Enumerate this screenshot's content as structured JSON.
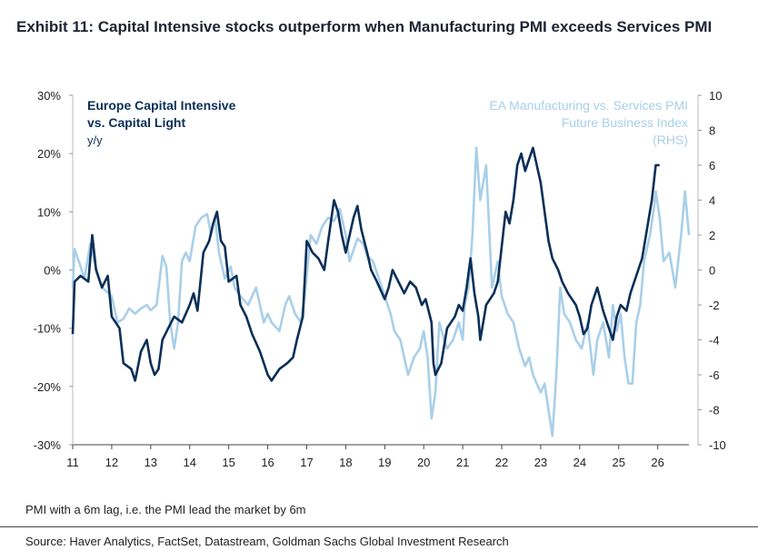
{
  "title": "Exhibit 11:  Capital Intensive stocks outperform when Manufacturing PMI exceeds Services PMI",
  "footnote": "PMI with a 6m lag, i.e. the PMI lead the market by 6m",
  "source": "Source: Haver Analytics, FactSet, Datastream, Goldman Sachs Global Investment Research",
  "chart_data": {
    "type": "line",
    "x_tick_labels": [
      "11",
      "12",
      "13",
      "14",
      "15",
      "16",
      "17",
      "18",
      "19",
      "20",
      "21",
      "22",
      "23",
      "24",
      "25",
      "26"
    ],
    "x_range": [
      2011.0,
      2026.8
    ],
    "left_axis": {
      "ticks": [
        "30%",
        "20%",
        "10%",
        "0%",
        "-10%",
        "-20%",
        "-30%"
      ],
      "range": [
        -30,
        30
      ]
    },
    "right_axis": {
      "ticks": [
        "10",
        "8",
        "6",
        "4",
        "2",
        "0",
        "-2",
        "-4",
        "-6",
        "-8",
        "-10"
      ],
      "range": [
        -10,
        10
      ]
    },
    "colors": {
      "dark": "#0b2f57",
      "light": "#a9cfe8"
    },
    "series": [
      {
        "name": "Europe Capital Intensive vs. Capital Light",
        "label_lines": [
          "Europe Capital Intensive",
          "vs. Capital Light"
        ],
        "unit_label": "y/y",
        "axis": "left",
        "color": "#0b2f57",
        "points": [
          [
            2011.0,
            -11
          ],
          [
            2011.05,
            -2
          ],
          [
            2011.2,
            -1
          ],
          [
            2011.4,
            -2
          ],
          [
            2011.5,
            6
          ],
          [
            2011.6,
            0
          ],
          [
            2011.75,
            -3
          ],
          [
            2011.9,
            -1
          ],
          [
            2012.0,
            -8
          ],
          [
            2012.2,
            -10
          ],
          [
            2012.3,
            -16
          ],
          [
            2012.5,
            -17
          ],
          [
            2012.6,
            -19
          ],
          [
            2012.75,
            -14
          ],
          [
            2012.9,
            -12
          ],
          [
            2013.0,
            -16
          ],
          [
            2013.1,
            -18
          ],
          [
            2013.2,
            -17
          ],
          [
            2013.3,
            -12
          ],
          [
            2013.45,
            -10
          ],
          [
            2013.6,
            -8
          ],
          [
            2013.8,
            -9
          ],
          [
            2014.0,
            -6
          ],
          [
            2014.1,
            -4
          ],
          [
            2014.2,
            -7
          ],
          [
            2014.35,
            3
          ],
          [
            2014.5,
            5
          ],
          [
            2014.6,
            8
          ],
          [
            2014.7,
            10
          ],
          [
            2014.8,
            5
          ],
          [
            2014.9,
            4
          ],
          [
            2015.0,
            -2
          ],
          [
            2015.2,
            -1
          ],
          [
            2015.3,
            -6
          ],
          [
            2015.45,
            -8
          ],
          [
            2015.6,
            -11
          ],
          [
            2015.8,
            -14
          ],
          [
            2016.0,
            -18
          ],
          [
            2016.1,
            -19
          ],
          [
            2016.3,
            -17
          ],
          [
            2016.5,
            -16
          ],
          [
            2016.65,
            -15
          ],
          [
            2016.75,
            -12
          ],
          [
            2016.9,
            -8
          ],
          [
            2017.0,
            5
          ],
          [
            2017.15,
            3
          ],
          [
            2017.3,
            2
          ],
          [
            2017.45,
            0
          ],
          [
            2017.55,
            5
          ],
          [
            2017.7,
            12
          ],
          [
            2017.8,
            10
          ],
          [
            2017.9,
            6
          ],
          [
            2018.0,
            3
          ],
          [
            2018.2,
            9
          ],
          [
            2018.3,
            11
          ],
          [
            2018.4,
            7
          ],
          [
            2018.55,
            3
          ],
          [
            2018.65,
            0
          ],
          [
            2018.8,
            -2
          ],
          [
            2019.0,
            -5
          ],
          [
            2019.1,
            -3
          ],
          [
            2019.2,
            0
          ],
          [
            2019.35,
            -2
          ],
          [
            2019.5,
            -4
          ],
          [
            2019.65,
            -2
          ],
          [
            2019.8,
            -3
          ],
          [
            2019.95,
            -6
          ],
          [
            2020.05,
            -5
          ],
          [
            2020.2,
            -9
          ],
          [
            2020.25,
            -16
          ],
          [
            2020.3,
            -18
          ],
          [
            2020.45,
            -16
          ],
          [
            2020.6,
            -10
          ],
          [
            2020.8,
            -8
          ],
          [
            2020.9,
            -6
          ],
          [
            2021.0,
            -7
          ],
          [
            2021.1,
            -3
          ],
          [
            2021.2,
            2
          ],
          [
            2021.3,
            -4
          ],
          [
            2021.4,
            -8
          ],
          [
            2021.45,
            -12
          ],
          [
            2021.5,
            -10
          ],
          [
            2021.6,
            -6
          ],
          [
            2021.8,
            -4
          ],
          [
            2021.9,
            -2
          ],
          [
            2022.0,
            4
          ],
          [
            2022.1,
            10
          ],
          [
            2022.2,
            8
          ],
          [
            2022.3,
            12
          ],
          [
            2022.4,
            18
          ],
          [
            2022.5,
            20
          ],
          [
            2022.6,
            17
          ],
          [
            2022.7,
            19
          ],
          [
            2022.8,
            21
          ],
          [
            2022.9,
            18
          ],
          [
            2023.0,
            15
          ],
          [
            2023.1,
            10
          ],
          [
            2023.2,
            5
          ],
          [
            2023.3,
            2
          ],
          [
            2023.45,
            0
          ],
          [
            2023.55,
            -2
          ],
          [
            2023.7,
            -4
          ],
          [
            2023.9,
            -6
          ],
          [
            2024.0,
            -8
          ],
          [
            2024.1,
            -11
          ],
          [
            2024.2,
            -10
          ],
          [
            2024.3,
            -6
          ],
          [
            2024.45,
            -3
          ],
          [
            2024.6,
            -7
          ],
          [
            2024.75,
            -10
          ],
          [
            2024.85,
            -12
          ],
          [
            2024.95,
            -8
          ],
          [
            2025.05,
            -6
          ],
          [
            2025.2,
            -7
          ],
          [
            2025.3,
            -4
          ],
          [
            2025.5,
            0
          ],
          [
            2025.6,
            2
          ],
          [
            2025.75,
            8
          ],
          [
            2025.85,
            12
          ],
          [
            2025.95,
            18
          ],
          [
            2026.05,
            18
          ]
        ]
      },
      {
        "name": "EA Manufacturing vs. Services PMI Future Business Index (RHS)",
        "label_lines": [
          "EA Manufacturing vs. Services PMI",
          "Future Business Index",
          "(RHS)"
        ],
        "axis": "right",
        "color": "#a9cfe8",
        "points": [
          [
            2011.0,
            -1
          ],
          [
            2011.05,
            1.2
          ],
          [
            2011.2,
            0.2
          ],
          [
            2011.3,
            -0.5
          ],
          [
            2011.45,
            1.5
          ],
          [
            2011.6,
            0.1
          ],
          [
            2011.75,
            -1
          ],
          [
            2012.0,
            -1.5
          ],
          [
            2012.15,
            -3
          ],
          [
            2012.3,
            -2.8
          ],
          [
            2012.45,
            -2.2
          ],
          [
            2012.6,
            -2.5
          ],
          [
            2012.75,
            -2.2
          ],
          [
            2012.9,
            -2
          ],
          [
            2013.0,
            -2.3
          ],
          [
            2013.15,
            -2
          ],
          [
            2013.3,
            0.8
          ],
          [
            2013.4,
            0.2
          ],
          [
            2013.5,
            -3
          ],
          [
            2013.6,
            -4.5
          ],
          [
            2013.7,
            -3
          ],
          [
            2013.8,
            0.5
          ],
          [
            2013.9,
            1
          ],
          [
            2014.0,
            0.5
          ],
          [
            2014.15,
            2.5
          ],
          [
            2014.3,
            3
          ],
          [
            2014.45,
            3.2
          ],
          [
            2014.55,
            2
          ],
          [
            2014.65,
            3
          ],
          [
            2014.75,
            1
          ],
          [
            2014.9,
            -0.5
          ],
          [
            2015.05,
            0.2
          ],
          [
            2015.15,
            -1
          ],
          [
            2015.3,
            -1.5
          ],
          [
            2015.5,
            -2
          ],
          [
            2015.7,
            -1
          ],
          [
            2015.9,
            -3
          ],
          [
            2016.0,
            -2.5
          ],
          [
            2016.1,
            -3
          ],
          [
            2016.3,
            -3.5
          ],
          [
            2016.45,
            -2
          ],
          [
            2016.55,
            -1.5
          ],
          [
            2016.7,
            -2.5
          ],
          [
            2016.85,
            -3
          ],
          [
            2016.95,
            -1.5
          ],
          [
            2017.1,
            2
          ],
          [
            2017.25,
            1.5
          ],
          [
            2017.4,
            2.5
          ],
          [
            2017.55,
            3
          ],
          [
            2017.7,
            2.8
          ],
          [
            2017.85,
            3.5
          ],
          [
            2018.0,
            2
          ],
          [
            2018.1,
            0.5
          ],
          [
            2018.3,
            1.8
          ],
          [
            2018.45,
            1.5
          ],
          [
            2018.55,
            0.8
          ],
          [
            2018.7,
            0.5
          ],
          [
            2018.85,
            -0.5
          ],
          [
            2019.0,
            -1.5
          ],
          [
            2019.15,
            -2.5
          ],
          [
            2019.25,
            -3.5
          ],
          [
            2019.4,
            -4
          ],
          [
            2019.5,
            -5
          ],
          [
            2019.6,
            -6
          ],
          [
            2019.75,
            -5
          ],
          [
            2019.9,
            -4.5
          ],
          [
            2020.0,
            -3.5
          ],
          [
            2020.1,
            -5
          ],
          [
            2020.2,
            -8.5
          ],
          [
            2020.3,
            -7
          ],
          [
            2020.4,
            -3
          ],
          [
            2020.5,
            -3.8
          ],
          [
            2020.6,
            -4.5
          ],
          [
            2020.75,
            -4
          ],
          [
            2020.9,
            -3
          ],
          [
            2021.0,
            -4
          ],
          [
            2021.05,
            -2
          ],
          [
            2021.15,
            -1
          ],
          [
            2021.25,
            2
          ],
          [
            2021.35,
            7
          ],
          [
            2021.45,
            4
          ],
          [
            2021.6,
            6
          ],
          [
            2021.75,
            -1
          ],
          [
            2021.9,
            0.5
          ],
          [
            2022.0,
            -1.5
          ],
          [
            2022.15,
            -2.5
          ],
          [
            2022.3,
            -3
          ],
          [
            2022.45,
            -4.5
          ],
          [
            2022.6,
            -5.5
          ],
          [
            2022.7,
            -5
          ],
          [
            2022.8,
            -6
          ],
          [
            2022.9,
            -6.5
          ],
          [
            2023.0,
            -7
          ],
          [
            2023.1,
            -6.5
          ],
          [
            2023.2,
            -8
          ],
          [
            2023.3,
            -9.5
          ],
          [
            2023.4,
            -6
          ],
          [
            2023.5,
            -1
          ],
          [
            2023.6,
            -2.5
          ],
          [
            2023.75,
            -3
          ],
          [
            2023.9,
            -4
          ],
          [
            2024.05,
            -4.5
          ],
          [
            2024.2,
            -3
          ],
          [
            2024.35,
            -6
          ],
          [
            2024.45,
            -4
          ],
          [
            2024.6,
            -3
          ],
          [
            2024.75,
            -5
          ],
          [
            2024.85,
            -2
          ],
          [
            2024.95,
            -3.5
          ],
          [
            2025.05,
            -2.5
          ],
          [
            2025.15,
            -5
          ],
          [
            2025.25,
            -6.5
          ],
          [
            2025.35,
            -6.5
          ],
          [
            2025.45,
            -3
          ],
          [
            2025.55,
            -2
          ],
          [
            2025.65,
            0.5
          ],
          [
            2025.8,
            2
          ],
          [
            2025.9,
            3.5
          ],
          [
            2025.95,
            4.5
          ],
          [
            2026.05,
            3
          ],
          [
            2026.15,
            0.5
          ],
          [
            2026.3,
            1
          ],
          [
            2026.45,
            -1
          ],
          [
            2026.6,
            2
          ],
          [
            2026.7,
            4.5
          ],
          [
            2026.8,
            2
          ]
        ]
      }
    ]
  }
}
